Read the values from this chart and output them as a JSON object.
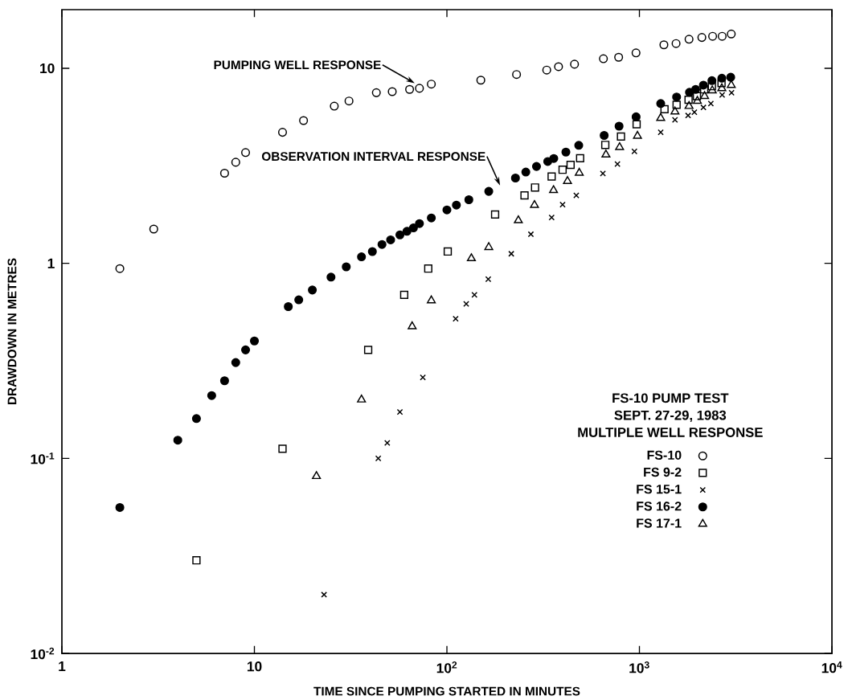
{
  "chart_data": {
    "type": "scatter",
    "legend_title": "MULTIPLE WELL RESPONSE",
    "title": "FS-10 PUMP TEST",
    "subtitle": "SEPT. 27-29, 1983",
    "xlabel": "TIME SINCE PUMPING STARTED IN MINUTES",
    "ylabel": "DRAWDOWN IN METRES",
    "log": "xy",
    "xlim": [
      1,
      10000
    ],
    "ylim": [
      0.01,
      20
    ],
    "xticks": [
      1,
      10,
      {
        "value": 100,
        "label": "10$^{2}$"
      },
      {
        "value": 1000,
        "label": "10$^{3}$"
      },
      {
        "value": 10000,
        "label": "10$^{4}$"
      }
    ],
    "yticks": [
      {
        "value": 0.01,
        "label": "10$^{-2}$"
      },
      {
        "value": 0.1,
        "label": "10$^{-1}$"
      },
      1,
      10
    ],
    "grid": false,
    "legend": "bottom right",
    "annotations": [
      {
        "text": "PUMPING WELL RESPONSE",
        "x": 68,
        "y": 8.4
      },
      "OBSERVATION INTERVAL RESPONSE"
    ],
    "series": [
      {
        "name": "FS-10",
        "color": "#000000",
        "marker": "circle",
        "x": [
          2,
          3,
          7,
          8,
          9,
          14,
          18,
          26,
          31,
          43,
          52,
          64,
          72,
          83,
          150,
          230,
          330,
          380,
          460,
          650,
          780,
          960,
          1340,
          1550,
          1810,
          2110,
          2400,
          2690,
          3000
        ],
        "values": [
          0.94,
          1.5,
          2.9,
          3.3,
          3.7,
          4.7,
          5.4,
          6.4,
          6.8,
          7.5,
          7.6,
          7.8,
          7.9,
          8.3,
          8.7,
          9.3,
          9.8,
          10.2,
          10.5,
          11.2,
          11.4,
          12,
          13.2,
          13.4,
          14.1,
          14.4,
          14.6,
          14.6,
          15
        ]
      },
      {
        "name": "FS 9-2",
        "color": "#000000",
        "marker": "square",
        "x": [
          5,
          14,
          39,
          60,
          80,
          101,
          178,
          253,
          287,
          350,
          399,
          439,
          492,
          665,
          802,
          967,
          1350,
          1560,
          1800,
          1990,
          2170,
          2380,
          2670
        ],
        "values": [
          0.03,
          0.112,
          0.36,
          0.69,
          0.94,
          1.15,
          1.78,
          2.23,
          2.45,
          2.79,
          3.02,
          3.2,
          3.46,
          4.05,
          4.47,
          5.17,
          6.17,
          6.5,
          6.9,
          7.2,
          7.8,
          8.1,
          8.4
        ]
      },
      {
        "name": "FS 15-1",
        "color": "#000000",
        "marker": "cross",
        "x": [
          23,
          44,
          49,
          57,
          75,
          111,
          126,
          139,
          164,
          216,
          273,
          350,
          399,
          470,
          646,
          769,
          942,
          1290,
          1530,
          1790,
          1930,
          2150,
          2350,
          2690,
          3010
        ],
        "values": [
          0.02,
          0.1,
          0.12,
          0.173,
          0.26,
          0.52,
          0.62,
          0.69,
          0.83,
          1.12,
          1.41,
          1.72,
          2.0,
          2.23,
          2.89,
          3.23,
          3.75,
          4.7,
          5.44,
          5.73,
          5.96,
          6.3,
          6.6,
          7.3,
          7.5
        ]
      },
      {
        "name": "FS 16-2",
        "color": "#000000",
        "marker": "dot",
        "x": [
          2,
          4,
          5,
          6,
          7,
          8,
          9,
          10,
          15,
          17,
          20,
          25,
          30,
          36,
          41,
          46,
          51,
          57,
          62,
          67,
          72,
          83,
          100,
          112,
          130,
          165,
          227,
          257,
          292,
          334,
          359,
          415,
          484,
          656,
          784,
          961,
          1290,
          1560,
          1820,
          1960,
          2150,
          2380,
          2680,
          2980
        ],
        "values": [
          0.056,
          0.124,
          0.16,
          0.21,
          0.25,
          0.31,
          0.36,
          0.4,
          0.6,
          0.65,
          0.73,
          0.85,
          0.96,
          1.08,
          1.15,
          1.25,
          1.32,
          1.4,
          1.46,
          1.52,
          1.6,
          1.71,
          1.88,
          1.99,
          2.12,
          2.34,
          2.74,
          2.94,
          3.14,
          3.33,
          3.45,
          3.72,
          4.03,
          4.53,
          5.05,
          5.64,
          6.6,
          7.13,
          7.54,
          7.8,
          8.2,
          8.65,
          8.9,
          9.0
        ]
      },
      {
        "name": "FS 17-1",
        "color": "#000000",
        "marker": "triangle",
        "x": [
          21,
          36,
          66,
          83,
          134,
          165,
          235,
          285,
          358,
          423,
          487,
          670,
          789,
          977,
          1290,
          1530,
          1810,
          2000,
          2180,
          2390,
          2680,
          3000
        ],
        "values": [
          0.081,
          0.2,
          0.475,
          0.645,
          1.06,
          1.21,
          1.66,
          1.99,
          2.37,
          2.64,
          2.91,
          3.61,
          3.94,
          4.5,
          5.56,
          6.0,
          6.4,
          6.8,
          7.2,
          7.7,
          7.9,
          8.2
        ]
      }
    ]
  }
}
